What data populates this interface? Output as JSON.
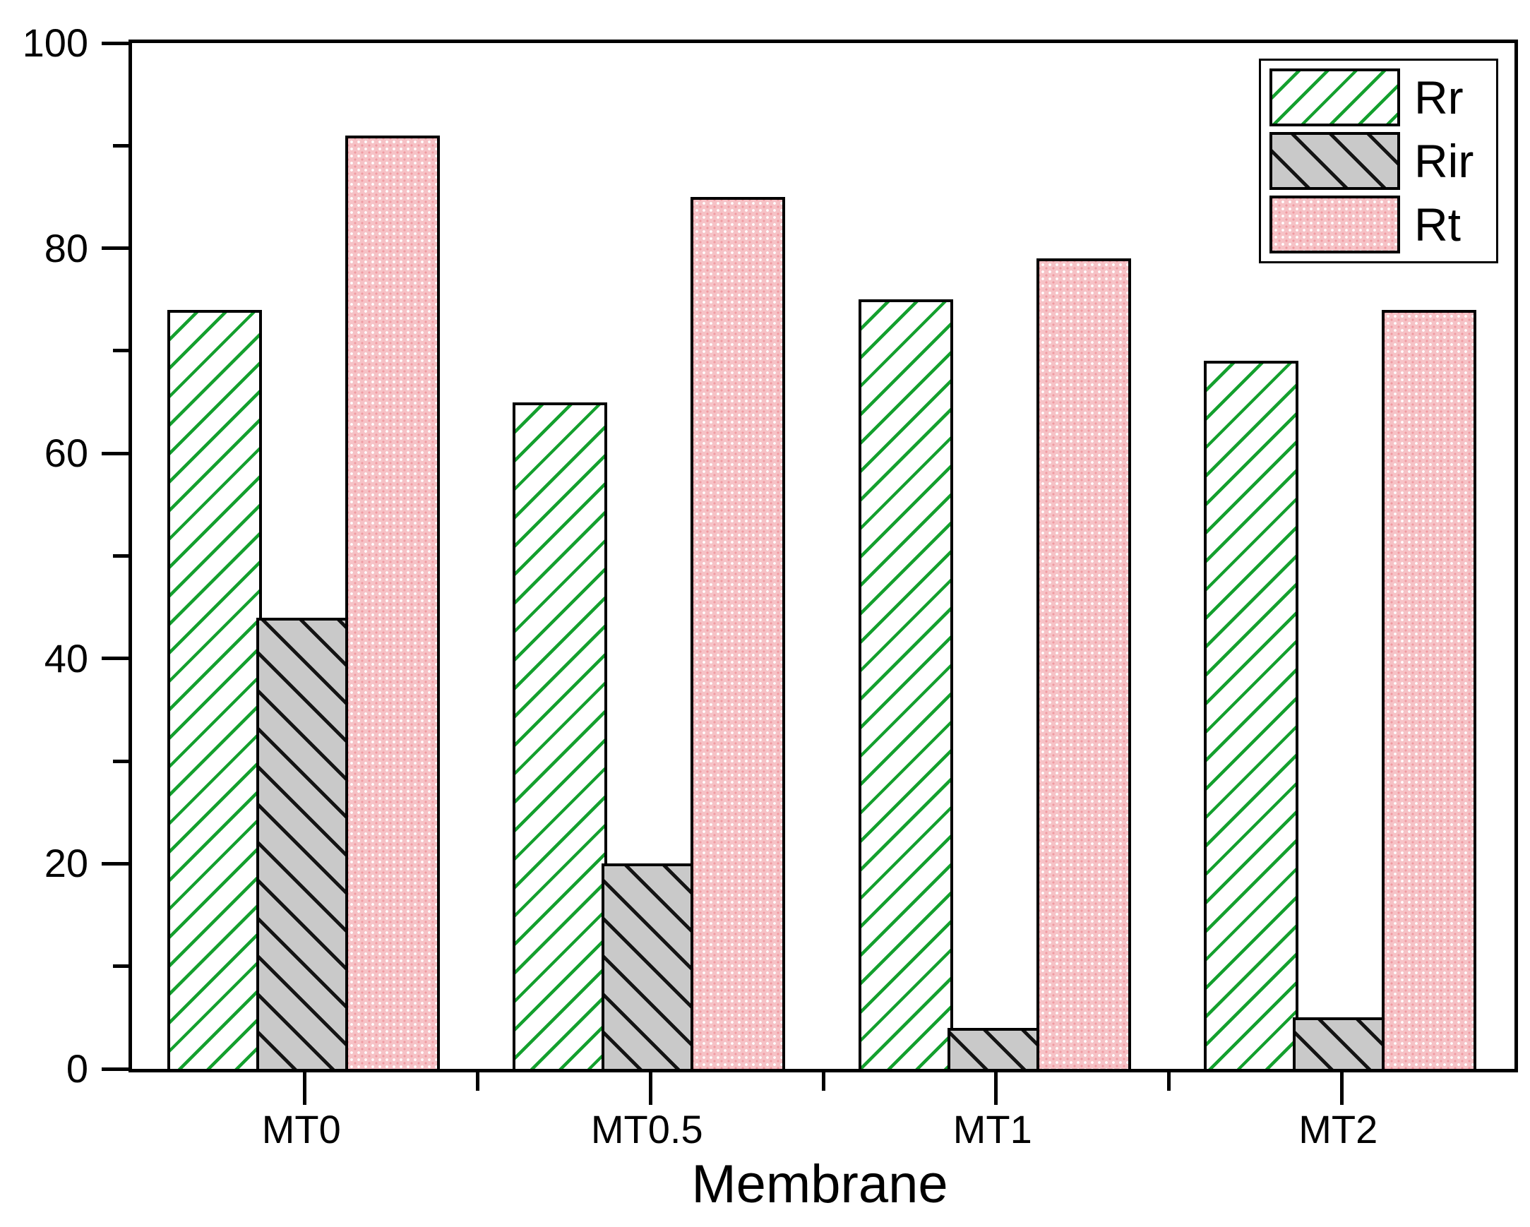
{
  "chart_data": {
    "type": "bar",
    "title": "",
    "xlabel": "Membrane",
    "ylabel": "",
    "categories": [
      "MT0",
      "MT0.5",
      "MT1",
      "MT2"
    ],
    "series": [
      {
        "name": "Rr",
        "values": [
          74,
          65,
          75,
          69
        ],
        "pattern": "green-forward-diagonal-hatch"
      },
      {
        "name": "Rir",
        "values": [
          44,
          20,
          4,
          5
        ],
        "pattern": "gray-backward-diagonal-hatch"
      },
      {
        "name": "Rt",
        "values": [
          91,
          85,
          79,
          74
        ],
        "pattern": "pink-dot-texture"
      }
    ],
    "ylim": [
      0,
      100
    ],
    "y_major_ticks": [
      0,
      20,
      40,
      60,
      80,
      100
    ],
    "y_minor_step": 10,
    "x_minor_ticks_between_groups": true,
    "grid": false,
    "legend_position": "top-right"
  },
  "colors": {
    "rr_hatch": "#14a02e",
    "rir_fill": "#c9c9c9",
    "rir_hatch": "#141414",
    "rt_fill": "#f6c2c6",
    "axis": "#000000",
    "background": "#ffffff"
  }
}
